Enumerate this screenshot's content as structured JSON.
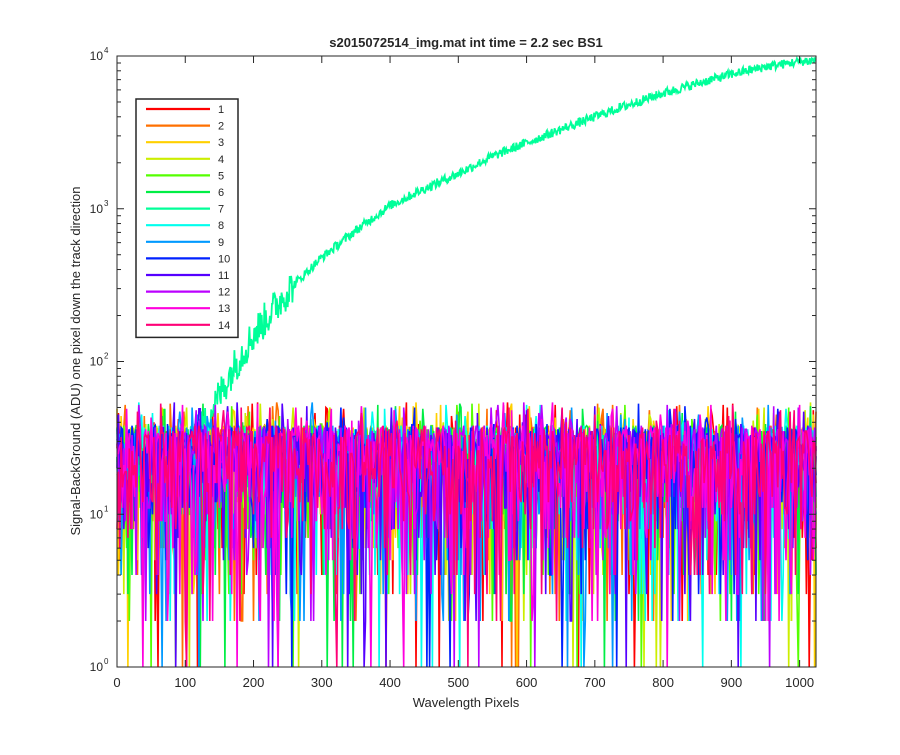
{
  "chart_data": {
    "type": "line",
    "title": "s2015072514_img.mat int time = 2.2 sec   BS1",
    "xlabel": "Wavelength Pixels",
    "ylabel": "Signal-BackGround (ADU) one pixel down the track direction",
    "xlim": [
      0,
      1024
    ],
    "ylim": [
      1,
      10000
    ],
    "yscale": "log",
    "grid": false,
    "legend_position": "top-left",
    "x_ticks": [
      0,
      100,
      200,
      300,
      400,
      500,
      600,
      700,
      800,
      900,
      1000
    ],
    "y_ticks": [
      {
        "value": 1,
        "base": "10",
        "exp": "0"
      },
      {
        "value": 10,
        "base": "10",
        "exp": "1"
      },
      {
        "value": 100,
        "base": "10",
        "exp": "2"
      },
      {
        "value": 1000,
        "base": "10",
        "exp": "3"
      },
      {
        "value": 10000,
        "base": "10",
        "exp": "4"
      }
    ],
    "series": [
      {
        "name": "1",
        "color": "#ff0000",
        "noise": true
      },
      {
        "name": "2",
        "color": "#ff7000",
        "noise": true
      },
      {
        "name": "3",
        "color": "#ffd000",
        "noise": true
      },
      {
        "name": "4",
        "color": "#ccee00",
        "noise": true
      },
      {
        "name": "5",
        "color": "#55ff00",
        "noise": true
      },
      {
        "name": "6",
        "color": "#00ee44",
        "noise": true
      },
      {
        "name": "7",
        "color": "#00ff99",
        "noise": false,
        "x": [
          0,
          100,
          130,
          150,
          170,
          200,
          250,
          300,
          350,
          400,
          450,
          500,
          550,
          600,
          650,
          700,
          750,
          800,
          850,
          900,
          950,
          1000,
          1024
        ],
        "values": [
          20,
          25,
          40,
          60,
          90,
          150,
          290,
          480,
          720,
          1050,
          1350,
          1700,
          2200,
          2700,
          3300,
          4000,
          4800,
          5700,
          6600,
          7600,
          8500,
          9200,
          9400
        ]
      },
      {
        "name": "8",
        "color": "#00ffee",
        "noise": true
      },
      {
        "name": "9",
        "color": "#0099ff",
        "noise": true
      },
      {
        "name": "10",
        "color": "#0022ff",
        "noise": true
      },
      {
        "name": "11",
        "color": "#5500ff",
        "noise": true
      },
      {
        "name": "12",
        "color": "#bb00ff",
        "noise": true
      },
      {
        "name": "13",
        "color": "#ff00dd",
        "noise": true
      },
      {
        "name": "14",
        "color": "#ff0077",
        "noise": true
      }
    ],
    "noise_range": [
      1,
      55
    ]
  }
}
